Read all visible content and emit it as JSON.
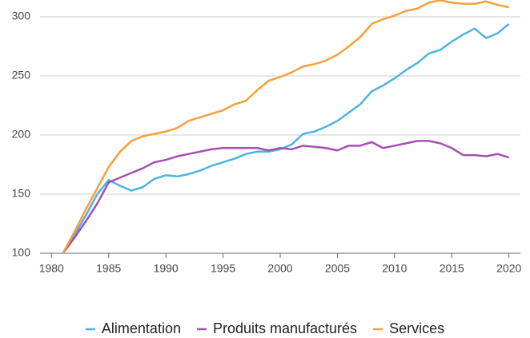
{
  "chart_data": {
    "type": "line",
    "x": [
      1981,
      1982,
      1983,
      1984,
      1985,
      1986,
      1987,
      1988,
      1989,
      1990,
      1991,
      1992,
      1993,
      1994,
      1995,
      1996,
      1997,
      1998,
      1999,
      2000,
      2001,
      2002,
      2003,
      2004,
      2005,
      2006,
      2007,
      2008,
      2009,
      2010,
      2011,
      2012,
      2013,
      2014,
      2015,
      2016,
      2017,
      2018,
      2019,
      2020
    ],
    "series": [
      {
        "name": "Alimentation",
        "color": "#4db3e2",
        "values": [
          100,
          115,
          132,
          150,
          162,
          157,
          153,
          156,
          163,
          166,
          165,
          167,
          170,
          174,
          177,
          180,
          184,
          186,
          186,
          188,
          192,
          201,
          203,
          207,
          212,
          219,
          226,
          237,
          242,
          248,
          255,
          261,
          269,
          272,
          279,
          285,
          290,
          282,
          286,
          294
        ]
      },
      {
        "name": "Produits manufacturés",
        "color": "#a54fb2",
        "values": [
          100,
          113,
          127,
          142,
          160,
          164,
          168,
          172,
          177,
          179,
          182,
          184,
          186,
          188,
          189,
          189,
          189,
          189,
          187,
          189,
          188,
          191,
          190,
          189,
          187,
          191,
          191,
          194,
          189,
          191,
          193,
          195,
          195,
          193,
          189,
          183,
          183,
          182,
          184,
          181
        ]
      },
      {
        "name": "Services",
        "color": "#f5a03a",
        "values": [
          100,
          118,
          137,
          155,
          173,
          186,
          195,
          199,
          201,
          203,
          206,
          212,
          215,
          218,
          221,
          226,
          229,
          238,
          246,
          249,
          253,
          258,
          260,
          263,
          268,
          275,
          283,
          294,
          298,
          301,
          305,
          307,
          312,
          314,
          312,
          311,
          311,
          313,
          310,
          308
        ]
      }
    ],
    "xlim": [
      1979,
      2021
    ],
    "xticks": [
      1980,
      1985,
      1990,
      1995,
      2000,
      2005,
      2010,
      2015,
      2020
    ],
    "ylim": [
      100,
      316
    ],
    "yticks": [
      100,
      150,
      200,
      250,
      300
    ],
    "grid": true,
    "legend": "bottom"
  }
}
